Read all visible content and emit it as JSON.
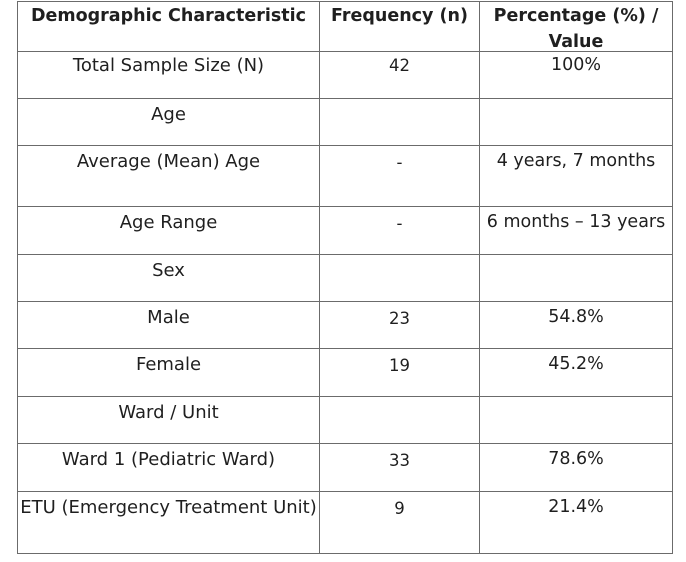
{
  "table": {
    "headers": [
      "Demographic Characteristic",
      "Frequency (n)",
      "Percentage (%) / Value"
    ],
    "rows": [
      [
        "Total Sample Size (N)",
        "42",
        "100%"
      ],
      [
        "Age",
        "",
        ""
      ],
      [
        "Average (Mean) Age",
        "-",
        "4 years, 7 months"
      ],
      [
        "Age Range",
        "-",
        "6 months – 13 years"
      ],
      [
        "Sex",
        "",
        ""
      ],
      [
        "Male",
        "23",
        "54.8%"
      ],
      [
        "Female",
        "19",
        "45.2%"
      ],
      [
        "Ward / Unit",
        "",
        ""
      ],
      [
        "Ward 1 (Pediatric Ward)",
        "33",
        "78.6%"
      ],
      [
        "ETU (Emergency Treatment Unit)",
        "9",
        "21.4%"
      ]
    ]
  }
}
